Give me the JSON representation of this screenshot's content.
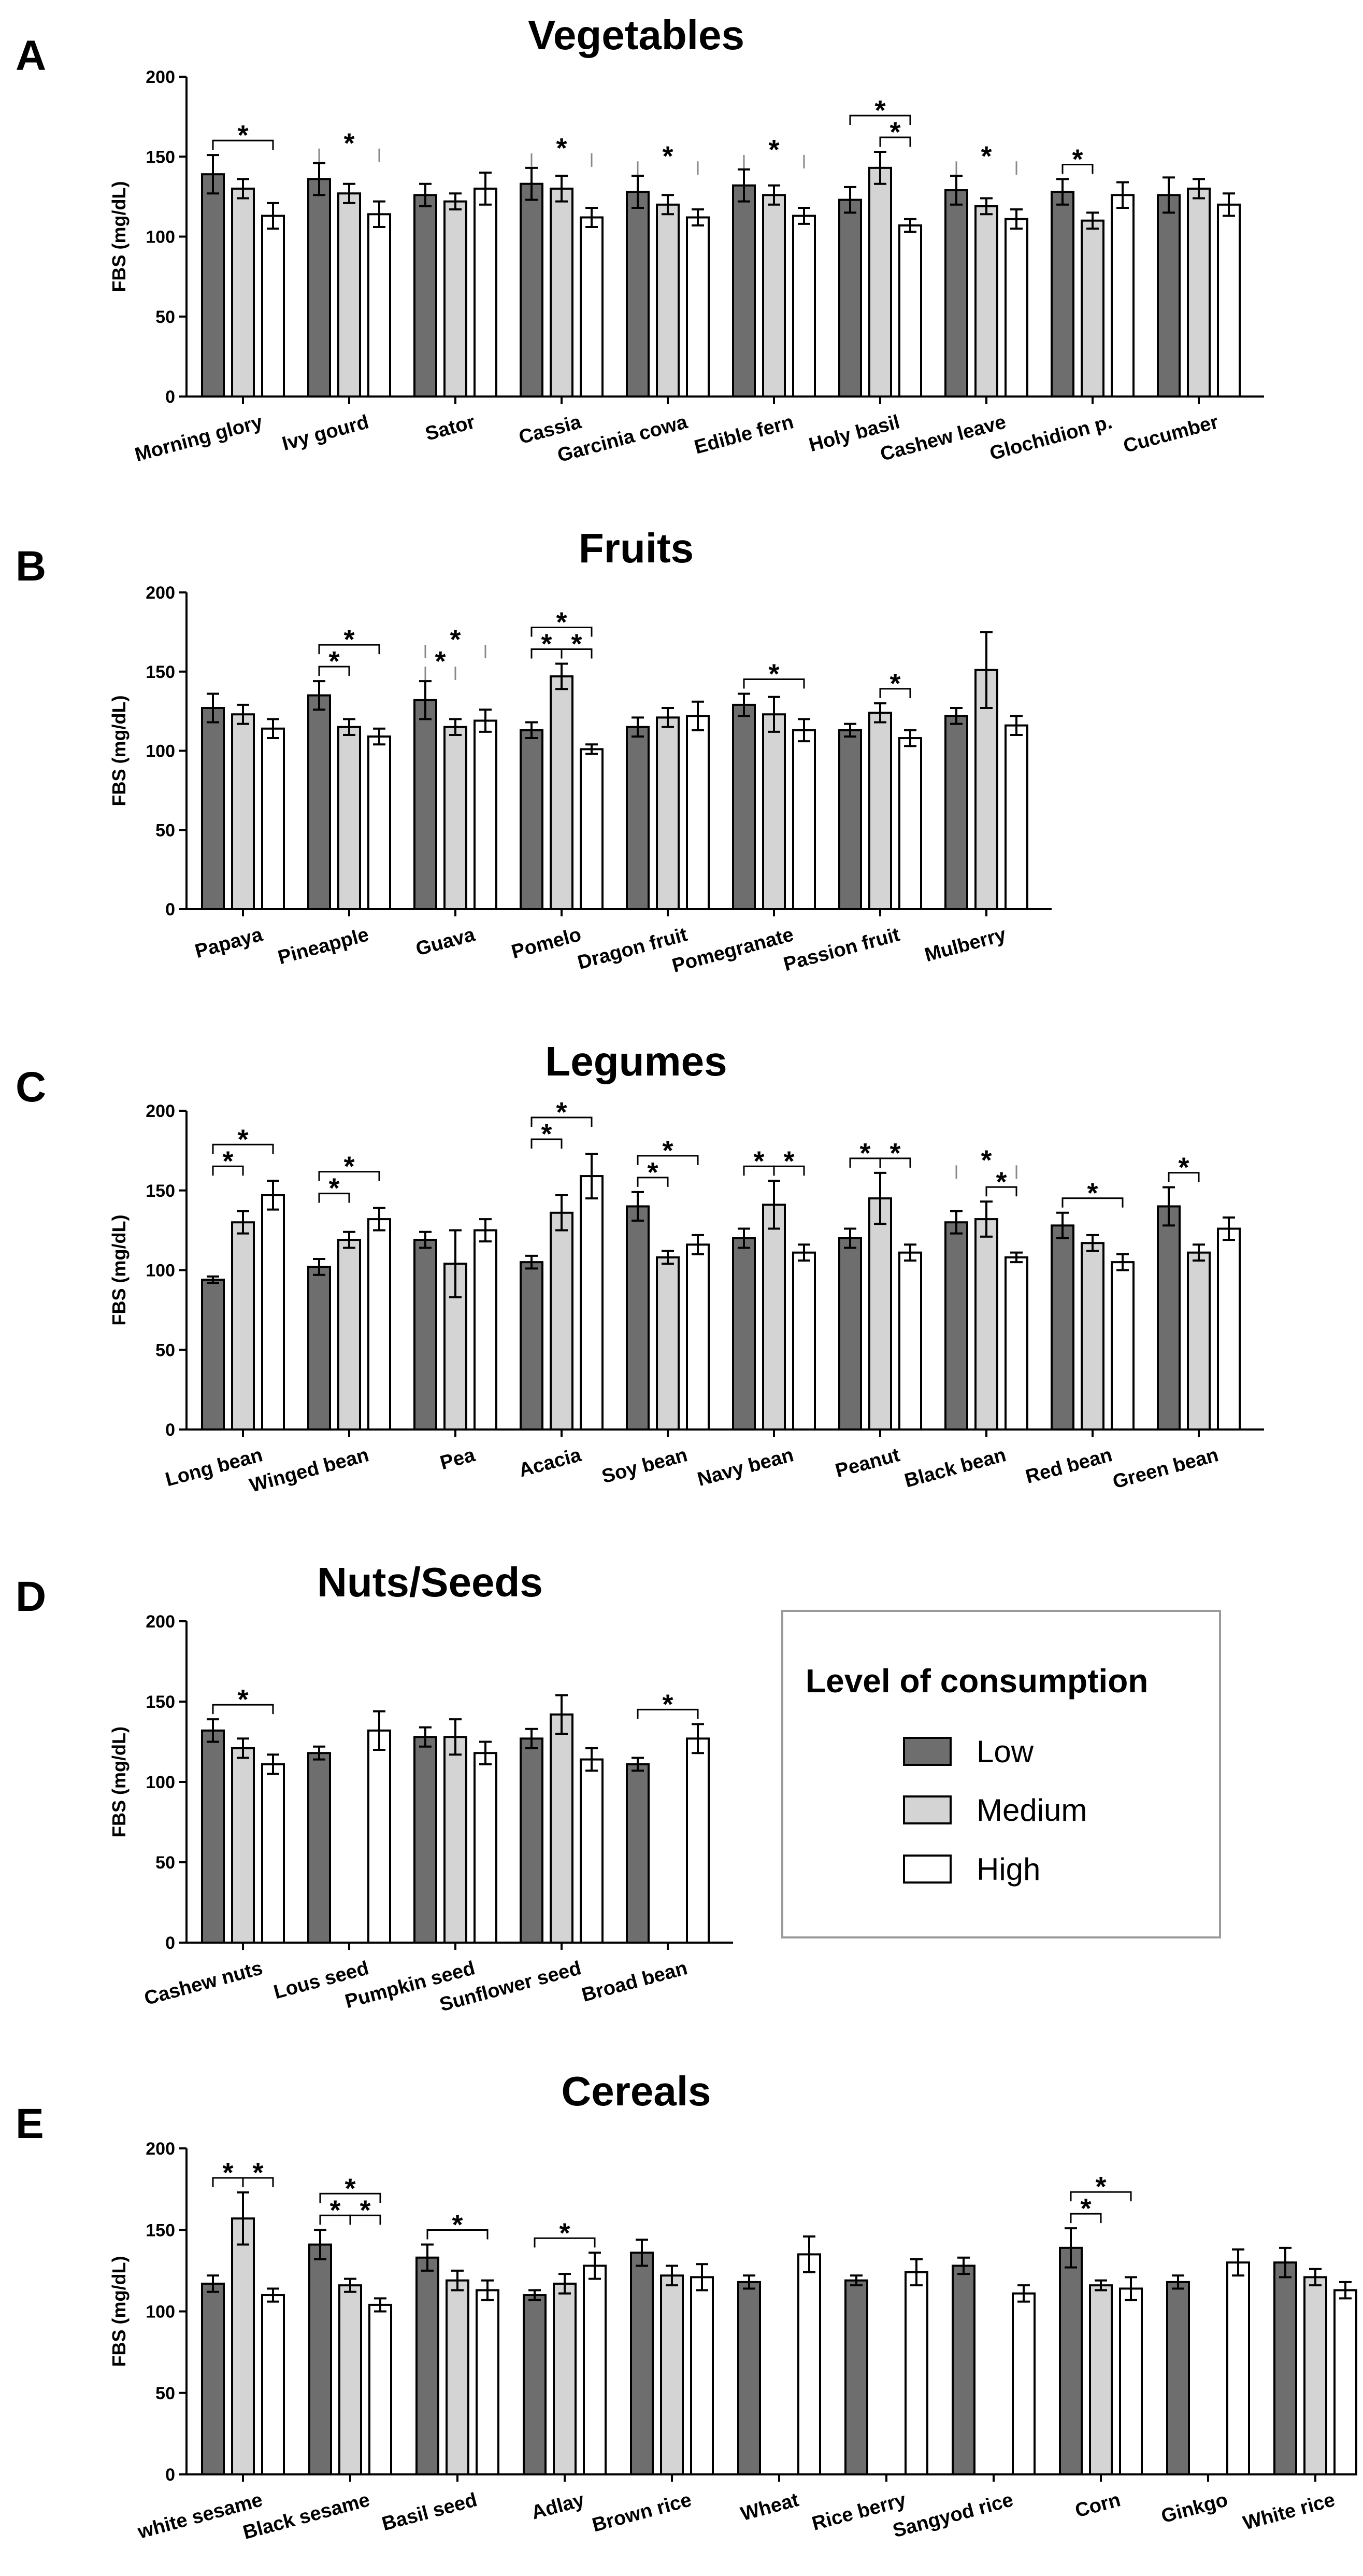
{
  "legend": {
    "title": "Level of consumption",
    "entries": [
      {
        "label": "Low",
        "color": "#6e6e6e"
      },
      {
        "label": "Medium",
        "color": "#d4d4d4"
      },
      {
        "label": "High",
        "color": "#ffffff"
      }
    ]
  },
  "chart_data": [
    {
      "panel": "A",
      "type": "bar",
      "title": "Vegetables",
      "ylabel": "FBS (mg/dL)",
      "ylim": [
        0,
        200
      ],
      "yticks": [
        0,
        50,
        100,
        150,
        200
      ],
      "series_names": [
        "Low",
        "Medium",
        "High"
      ],
      "categories": [
        "Morning glory",
        "Ivy gourd",
        "Sator",
        "Cassia",
        "Garcinia cowa",
        "Edible fern",
        "Holy basil",
        "Cashew leave",
        "Glochidion p.",
        "Cucumber"
      ],
      "values": [
        [
          139,
          130,
          113
        ],
        [
          136,
          127,
          114
        ],
        [
          126,
          122,
          130
        ],
        [
          133,
          130,
          112
        ],
        [
          128,
          120,
          112
        ],
        [
          132,
          126,
          113
        ],
        [
          123,
          143,
          107
        ],
        [
          129,
          119,
          111
        ],
        [
          128,
          110,
          126
        ],
        [
          126,
          130,
          120
        ]
      ],
      "errors": [
        [
          12,
          6,
          8
        ],
        [
          10,
          6,
          8
        ],
        [
          7,
          5,
          10
        ],
        [
          10,
          8,
          6
        ],
        [
          10,
          6,
          5
        ],
        [
          10,
          6,
          5
        ],
        [
          8,
          10,
          4
        ],
        [
          9,
          5,
          6
        ],
        [
          8,
          5,
          8
        ],
        [
          11,
          6,
          7
        ]
      ],
      "significance": [
        {
          "category": 0,
          "from": 0,
          "to": 2,
          "label": "*",
          "level": 1
        },
        {
          "category": 1,
          "from": 0,
          "to": 2,
          "label": "*",
          "level": 1,
          "open": true
        },
        {
          "category": 3,
          "from": 0,
          "to": 2,
          "label": "*",
          "level": 1,
          "open": true
        },
        {
          "category": 4,
          "from": 0,
          "to": 2,
          "label": "*",
          "level": 1,
          "open": true
        },
        {
          "category": 5,
          "from": 0,
          "to": 2,
          "label": "*",
          "level": 1,
          "open": true
        },
        {
          "category": 6,
          "from": 0,
          "to": 2,
          "label": "*",
          "level": 2
        },
        {
          "category": 6,
          "from": 1,
          "to": 2,
          "label": "*",
          "level": 1
        },
        {
          "category": 7,
          "from": 0,
          "to": 2,
          "label": "*",
          "level": 1,
          "open": true
        },
        {
          "category": 8,
          "from": 0,
          "to": 1,
          "label": "*",
          "level": 1
        }
      ]
    },
    {
      "panel": "B",
      "type": "bar",
      "title": "Fruits",
      "ylabel": "FBS (mg/dL)",
      "ylim": [
        0,
        200
      ],
      "yticks": [
        0,
        50,
        100,
        150,
        200
      ],
      "series_names": [
        "Low",
        "Medium",
        "High"
      ],
      "categories": [
        "Papaya",
        "Pineapple",
        "Guava",
        "Pomelo",
        "Dragon fruit",
        "Pomegranate",
        "Passion fruit",
        "Mulberry"
      ],
      "values": [
        [
          127,
          123,
          114
        ],
        [
          135,
          115,
          109
        ],
        [
          132,
          115,
          119
        ],
        [
          113,
          147,
          101
        ],
        [
          115,
          121,
          122
        ],
        [
          129,
          123,
          113
        ],
        [
          113,
          124,
          108
        ],
        [
          122,
          151,
          116
        ]
      ],
      "errors": [
        [
          9,
          6,
          6
        ],
        [
          9,
          5,
          5
        ],
        [
          12,
          5,
          7
        ],
        [
          5,
          8,
          3
        ],
        [
          6,
          6,
          9
        ],
        [
          7,
          11,
          7
        ],
        [
          4,
          6,
          5
        ],
        [
          5,
          24,
          6
        ]
      ],
      "significance": [
        {
          "category": 1,
          "from": 0,
          "to": 2,
          "label": "*",
          "level": 2
        },
        {
          "category": 1,
          "from": 0,
          "to": 1,
          "label": "*",
          "level": 1
        },
        {
          "category": 2,
          "from": 0,
          "to": 2,
          "label": "*",
          "level": 2,
          "open": true
        },
        {
          "category": 2,
          "from": 0,
          "to": 1,
          "label": "*",
          "level": 1,
          "open": true
        },
        {
          "category": 3,
          "from": 0,
          "to": 2,
          "label": "*",
          "level": 2
        },
        {
          "category": 3,
          "from": 0,
          "to": 1,
          "label": "*",
          "level": 1
        },
        {
          "category": 3,
          "from": 1,
          "to": 2,
          "label": "*",
          "level": 1
        },
        {
          "category": 5,
          "from": 0,
          "to": 2,
          "label": "*",
          "level": 1
        },
        {
          "category": 6,
          "from": 1,
          "to": 2,
          "label": "*",
          "level": 1
        }
      ]
    },
    {
      "panel": "C",
      "type": "bar",
      "title": "Legumes",
      "ylabel": "FBS (mg/dL)",
      "ylim": [
        0,
        200
      ],
      "yticks": [
        0,
        50,
        100,
        150,
        200
      ],
      "series_names": [
        "Low",
        "Medium",
        "High"
      ],
      "categories": [
        "Long bean",
        "Winged bean",
        "Pea",
        "Acacia",
        "Soy bean",
        "Navy bean",
        "Peanut",
        "Black bean",
        "Red bean",
        "Green bean"
      ],
      "values": [
        [
          94,
          130,
          147
        ],
        [
          102,
          119,
          132
        ],
        [
          119,
          104,
          125
        ],
        [
          105,
          136,
          159
        ],
        [
          140,
          108,
          116
        ],
        [
          120,
          141,
          111
        ],
        [
          120,
          145,
          111
        ],
        [
          130,
          132,
          108
        ],
        [
          128,
          117,
          105
        ],
        [
          140,
          111,
          126
        ]
      ],
      "errors": [
        [
          2,
          7,
          9
        ],
        [
          5,
          5,
          7
        ],
        [
          5,
          21,
          7
        ],
        [
          4,
          11,
          14
        ],
        [
          9,
          4,
          6
        ],
        [
          6,
          15,
          5
        ],
        [
          6,
          16,
          5
        ],
        [
          7,
          11,
          3
        ],
        [
          8,
          5,
          5
        ],
        [
          12,
          5,
          7
        ]
      ],
      "significance": [
        {
          "category": 0,
          "from": 0,
          "to": 2,
          "label": "*",
          "level": 2
        },
        {
          "category": 0,
          "from": 0,
          "to": 1,
          "label": "*",
          "level": 1
        },
        {
          "category": 1,
          "from": 0,
          "to": 2,
          "label": "*",
          "level": 2
        },
        {
          "category": 1,
          "from": 0,
          "to": 1,
          "label": "*",
          "level": 1
        },
        {
          "category": 3,
          "from": 0,
          "to": 2,
          "label": "*",
          "level": 2
        },
        {
          "category": 3,
          "from": 0,
          "to": 1,
          "label": "*",
          "level": 1
        },
        {
          "category": 4,
          "from": 0,
          "to": 2,
          "label": "*",
          "level": 2
        },
        {
          "category": 4,
          "from": 0,
          "to": 1,
          "label": "*",
          "level": 1
        },
        {
          "category": 5,
          "from": 0,
          "to": 1,
          "label": "*",
          "level": 1
        },
        {
          "category": 5,
          "from": 1,
          "to": 2,
          "label": "*",
          "level": 1
        },
        {
          "category": 6,
          "from": 0,
          "to": 1,
          "label": "*",
          "level": 1
        },
        {
          "category": 6,
          "from": 1,
          "to": 2,
          "label": "*",
          "level": 1
        },
        {
          "category": 7,
          "from": 0,
          "to": 2,
          "label": "*",
          "level": 2,
          "open": true
        },
        {
          "category": 7,
          "from": 1,
          "to": 2,
          "label": "*",
          "level": 1
        },
        {
          "category": 8,
          "from": 0,
          "to": 2,
          "label": "*",
          "level": 1
        },
        {
          "category": 9,
          "from": 0,
          "to": 1,
          "label": "*",
          "level": 1
        }
      ]
    },
    {
      "panel": "D",
      "type": "bar",
      "title": "Nuts/Seeds",
      "ylabel": "FBS (mg/dL)",
      "ylim": [
        0,
        200
      ],
      "yticks": [
        0,
        50,
        100,
        150,
        200
      ],
      "series_names": [
        "Low",
        "Medium",
        "High"
      ],
      "categories": [
        "Cashew nuts",
        "Lous seed",
        "Pumpkin seed",
        "Sunflower seed",
        "Broad bean"
      ],
      "values": [
        [
          132,
          121,
          111
        ],
        [
          118,
          null,
          132
        ],
        [
          128,
          128,
          118
        ],
        [
          127,
          142,
          114
        ],
        [
          111,
          null,
          127
        ]
      ],
      "errors": [
        [
          7,
          6,
          6
        ],
        [
          4,
          null,
          12
        ],
        [
          6,
          11,
          7
        ],
        [
          6,
          12,
          7
        ],
        [
          4,
          null,
          9
        ]
      ],
      "significance": [
        {
          "category": 0,
          "from": 0,
          "to": 2,
          "label": "*",
          "level": 1
        },
        {
          "category": 4,
          "from": 0,
          "to": 2,
          "label": "*",
          "level": 1
        }
      ]
    },
    {
      "panel": "E",
      "type": "bar",
      "title": "Cereals",
      "ylabel": "FBS (mg/dL)",
      "ylim": [
        0,
        200
      ],
      "yticks": [
        0,
        50,
        100,
        150,
        200
      ],
      "series_names": [
        "Low",
        "Medium",
        "High"
      ],
      "categories": [
        "white sesame",
        "Black sesame",
        "Basil seed",
        "Adlay",
        "Brown rice",
        "Wheat",
        "Rice berry",
        "Sangyod rice",
        "Corn",
        "Ginkgo",
        "White rice"
      ],
      "values": [
        [
          117,
          157,
          110
        ],
        [
          141,
          116,
          104
        ],
        [
          133,
          119,
          113
        ],
        [
          110,
          117,
          128
        ],
        [
          136,
          122,
          121
        ],
        [
          118,
          null,
          135
        ],
        [
          119,
          null,
          124
        ],
        [
          128,
          null,
          111
        ],
        [
          139,
          116,
          114
        ],
        [
          118,
          null,
          130
        ],
        [
          130,
          121,
          113
        ]
      ],
      "errors": [
        [
          5,
          16,
          4
        ],
        [
          9,
          4,
          4
        ],
        [
          8,
          6,
          6
        ],
        [
          3,
          6,
          8
        ],
        [
          8,
          6,
          8
        ],
        [
          4,
          null,
          11
        ],
        [
          3,
          null,
          8
        ],
        [
          5,
          null,
          5
        ],
        [
          12,
          3,
          7
        ],
        [
          4,
          null,
          8
        ],
        [
          9,
          5,
          5
        ]
      ],
      "significance": [
        {
          "category": 0,
          "from": 0,
          "to": 1,
          "label": "*",
          "level": 1
        },
        {
          "category": 0,
          "from": 1,
          "to": 2,
          "label": "*",
          "level": 1
        },
        {
          "category": 1,
          "from": 0,
          "to": 2,
          "label": "*",
          "level": 2
        },
        {
          "category": 1,
          "from": 0,
          "to": 1,
          "label": "*",
          "level": 1
        },
        {
          "category": 1,
          "from": 1,
          "to": 2,
          "label": "*",
          "level": 1
        },
        {
          "category": 2,
          "from": 0,
          "to": 2,
          "label": "*",
          "level": 1
        },
        {
          "category": 3,
          "from": 0,
          "to": 2,
          "label": "*",
          "level": 1
        },
        {
          "category": 8,
          "from": 0,
          "to": 2,
          "label": "*",
          "level": 2
        },
        {
          "category": 8,
          "from": 0,
          "to": 1,
          "label": "*",
          "level": 1
        }
      ]
    }
  ]
}
